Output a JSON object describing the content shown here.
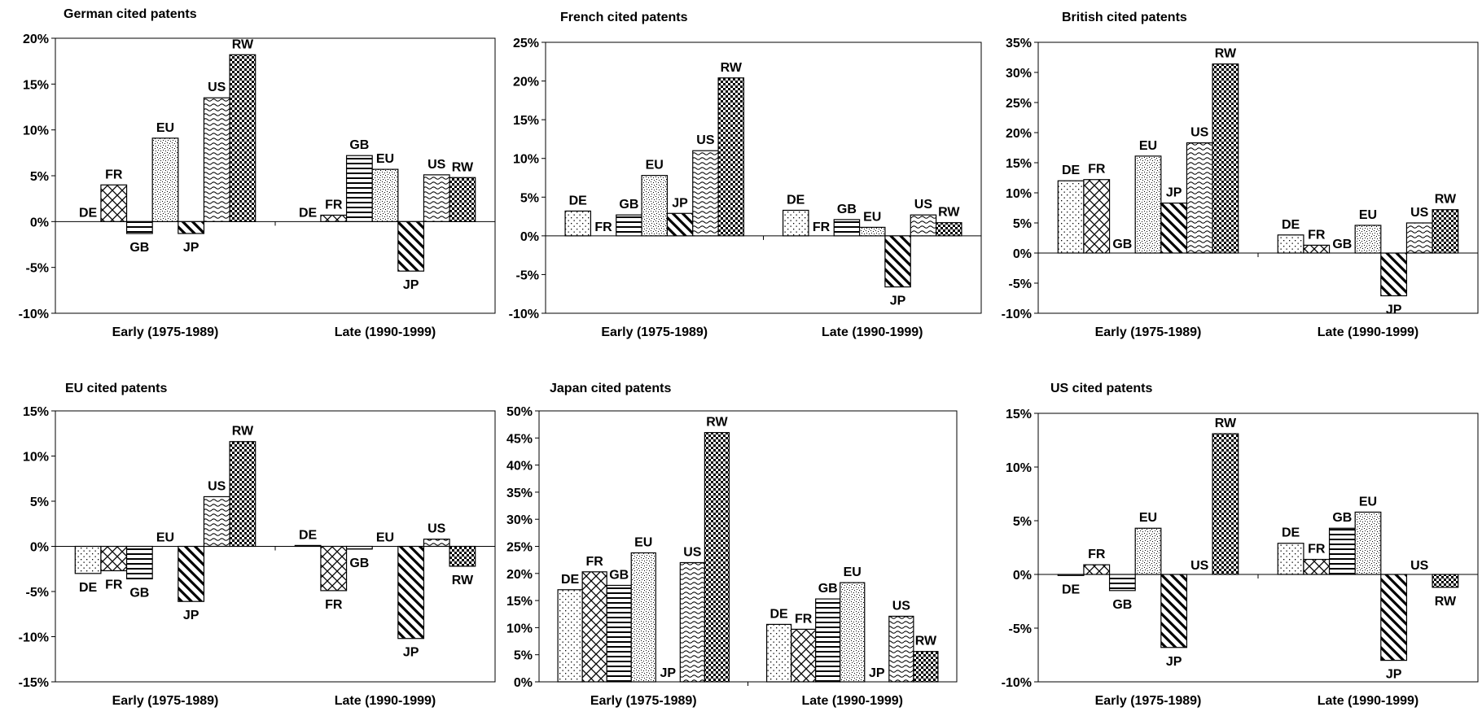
{
  "chart_data": [
    {
      "type": "bar",
      "title": "German cited patents",
      "categories": [
        "Early (1975-1989)",
        "Late (1990-1999)"
      ],
      "ylim": [
        -10,
        20
      ],
      "yticks": [
        -10,
        -5,
        0,
        5,
        10,
        15,
        20
      ],
      "tick_suffix": "%",
      "series": [
        {
          "name": "DE",
          "values": [
            0.0,
            0.0
          ]
        },
        {
          "name": "FR",
          "values": [
            4.0,
            0.7
          ]
        },
        {
          "name": "GB",
          "values": [
            -1.3,
            7.2
          ]
        },
        {
          "name": "EU",
          "values": [
            9.1,
            5.7
          ]
        },
        {
          "name": "JP",
          "values": [
            -1.3,
            -5.4
          ]
        },
        {
          "name": "US",
          "values": [
            13.5,
            5.1
          ]
        },
        {
          "name": "RW",
          "values": [
            18.2,
            4.8
          ]
        }
      ]
    },
    {
      "type": "bar",
      "title": "French cited patents",
      "categories": [
        "Early (1975-1989)",
        "Late (1990-1999)"
      ],
      "ylim": [
        -10,
        25
      ],
      "yticks": [
        -10,
        -5,
        0,
        5,
        10,
        15,
        20,
        25
      ],
      "tick_suffix": "%",
      "series": [
        {
          "name": "DE",
          "values": [
            3.2,
            3.3
          ]
        },
        {
          "name": "FR",
          "values": [
            0.0,
            0.0
          ]
        },
        {
          "name": "GB",
          "values": [
            2.7,
            2.1
          ]
        },
        {
          "name": "EU",
          "values": [
            7.8,
            1.1
          ]
        },
        {
          "name": "JP",
          "values": [
            2.9,
            -6.6
          ]
        },
        {
          "name": "US",
          "values": [
            11.0,
            2.7
          ]
        },
        {
          "name": "RW",
          "values": [
            20.4,
            1.7
          ]
        }
      ]
    },
    {
      "type": "bar",
      "title": "British cited patents",
      "categories": [
        "Early (1975-1989)",
        "Late (1990-1999)"
      ],
      "ylim": [
        -10,
        35
      ],
      "yticks": [
        -10,
        -5,
        0,
        5,
        10,
        15,
        20,
        25,
        30,
        35
      ],
      "tick_suffix": "%",
      "series": [
        {
          "name": "DE",
          "values": [
            12.0,
            3.0
          ]
        },
        {
          "name": "FR",
          "values": [
            12.2,
            1.3
          ]
        },
        {
          "name": "GB",
          "values": [
            0.0,
            0.0
          ]
        },
        {
          "name": "EU",
          "values": [
            16.1,
            4.6
          ]
        },
        {
          "name": "JP",
          "values": [
            8.3,
            -7.1
          ]
        },
        {
          "name": "US",
          "values": [
            18.3,
            5.0
          ]
        },
        {
          "name": "RW",
          "values": [
            31.4,
            7.2
          ]
        }
      ]
    },
    {
      "type": "bar",
      "title": "EU cited patents",
      "categories": [
        "Early (1975-1989)",
        "Late (1990-1999)"
      ],
      "ylim": [
        -15,
        15
      ],
      "yticks": [
        -15,
        -10,
        -5,
        0,
        5,
        10,
        15
      ],
      "tick_suffix": "%",
      "series": [
        {
          "name": "DE",
          "values": [
            -3.0,
            0.1
          ]
        },
        {
          "name": "FR",
          "values": [
            -2.7,
            -4.9
          ]
        },
        {
          "name": "GB",
          "values": [
            -3.6,
            -0.3
          ]
        },
        {
          "name": "EU",
          "values": [
            0.0,
            0.0
          ]
        },
        {
          "name": "JP",
          "values": [
            -6.1,
            -10.2
          ]
        },
        {
          "name": "US",
          "values": [
            5.5,
            0.8
          ]
        },
        {
          "name": "RW",
          "values": [
            11.6,
            -2.2
          ]
        }
      ]
    },
    {
      "type": "bar",
      "title": "Japan cited patents",
      "categories": [
        "Early (1975-1989)",
        "Late (1990-1999)"
      ],
      "ylim": [
        0,
        50
      ],
      "yticks": [
        0,
        5,
        10,
        15,
        20,
        25,
        30,
        35,
        40,
        45,
        50
      ],
      "tick_suffix": "%",
      "series": [
        {
          "name": "DE",
          "values": [
            17.0,
            10.6
          ]
        },
        {
          "name": "FR",
          "values": [
            20.3,
            9.7
          ]
        },
        {
          "name": "GB",
          "values": [
            17.8,
            15.3
          ]
        },
        {
          "name": "EU",
          "values": [
            23.8,
            18.3
          ]
        },
        {
          "name": "JP",
          "values": [
            0.0,
            0.0
          ]
        },
        {
          "name": "US",
          "values": [
            22.0,
            12.1
          ]
        },
        {
          "name": "RW",
          "values": [
            46.0,
            5.6
          ]
        }
      ]
    },
    {
      "type": "bar",
      "title": "US cited patents",
      "categories": [
        "Early (1975-1989)",
        "Late (1990-1999)"
      ],
      "ylim": [
        -10,
        15
      ],
      "yticks": [
        -10,
        -5,
        0,
        5,
        10,
        15
      ],
      "tick_suffix": "%",
      "series": [
        {
          "name": "DE",
          "values": [
            -0.1,
            2.9
          ]
        },
        {
          "name": "FR",
          "values": [
            0.9,
            1.4
          ]
        },
        {
          "name": "GB",
          "values": [
            -1.5,
            4.3
          ]
        },
        {
          "name": "EU",
          "values": [
            4.3,
            5.8
          ]
        },
        {
          "name": "JP",
          "values": [
            -6.8,
            -8.0
          ]
        },
        {
          "name": "US",
          "values": [
            0.0,
            0.0
          ]
        },
        {
          "name": "RW",
          "values": [
            13.1,
            -1.2
          ]
        }
      ]
    }
  ]
}
